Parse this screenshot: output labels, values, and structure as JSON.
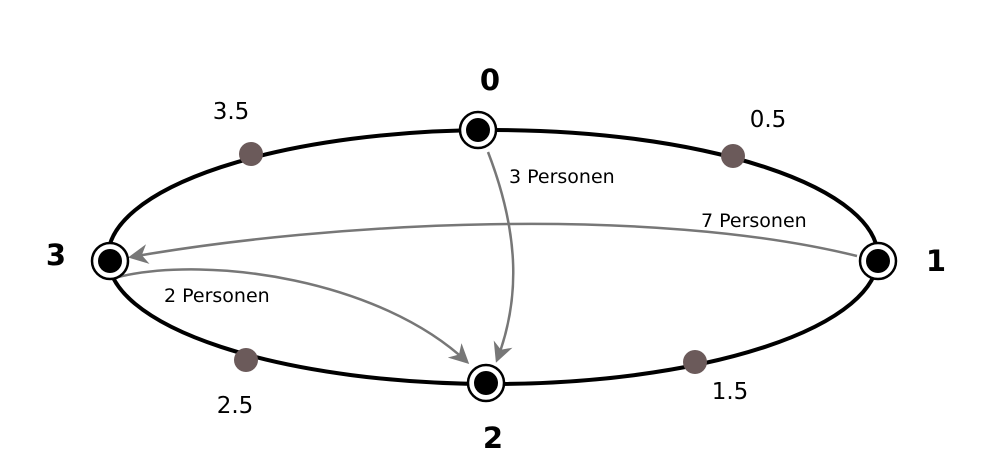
{
  "colors": {
    "ring": "#000000",
    "node_fill": "#000000",
    "node_ring": "#000000",
    "midpoint": "#6b5a5a",
    "flow": "#777777",
    "background": "#ffffff"
  },
  "nodes": [
    {
      "id": "0",
      "label": "0"
    },
    {
      "id": "1",
      "label": "1"
    },
    {
      "id": "2",
      "label": "2"
    },
    {
      "id": "3",
      "label": "3"
    }
  ],
  "midpoints": [
    {
      "label": "0.5"
    },
    {
      "label": "1.5"
    },
    {
      "label": "2.5"
    },
    {
      "label": "3.5"
    }
  ],
  "flows": [
    {
      "from": "0",
      "to": "2",
      "label": "3 Personen"
    },
    {
      "from": "1",
      "to": "3",
      "label": "7 Personen"
    },
    {
      "from": "3",
      "to": "2",
      "label": "2 Personen"
    }
  ]
}
